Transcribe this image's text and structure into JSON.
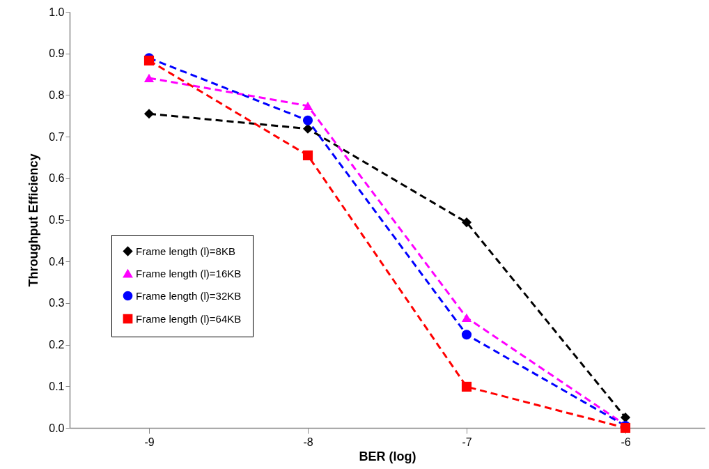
{
  "chart_data": {
    "type": "line",
    "xlabel": "BER (log)",
    "ylabel": "Throughput Efficiency",
    "categories": [
      "-9",
      "-8",
      "-7",
      "-6"
    ],
    "series": [
      {
        "name": "Frame length (l)=8KB",
        "color": "#000000",
        "marker": "diamond",
        "values": [
          0.755,
          0.719,
          0.494,
          0.025
        ]
      },
      {
        "name": "Frame length (l)=16KB",
        "color": "#ff00ff",
        "marker": "triangle",
        "values": [
          0.841,
          0.774,
          0.265,
          0.007
        ]
      },
      {
        "name": "Frame length (l)=32KB",
        "color": "#0000ff",
        "marker": "circle",
        "values": [
          0.889,
          0.739,
          0.224,
          0.005
        ]
      },
      {
        "name": "Frame length (l)=64KB",
        "color": "#ff0000",
        "marker": "square",
        "values": [
          0.883,
          0.655,
          0.099,
          0.0
        ]
      }
    ],
    "ylim": [
      0,
      1
    ],
    "yticks": [
      {
        "value": 0,
        "label": "0.0"
      },
      0.1,
      0.2,
      0.3,
      0.4,
      0.5,
      0.6,
      0.7,
      0.8,
      0.9,
      {
        "value": 1,
        "label": "1.0"
      }
    ],
    "grid": false,
    "legend": "left",
    "line_style": "dashed"
  }
}
